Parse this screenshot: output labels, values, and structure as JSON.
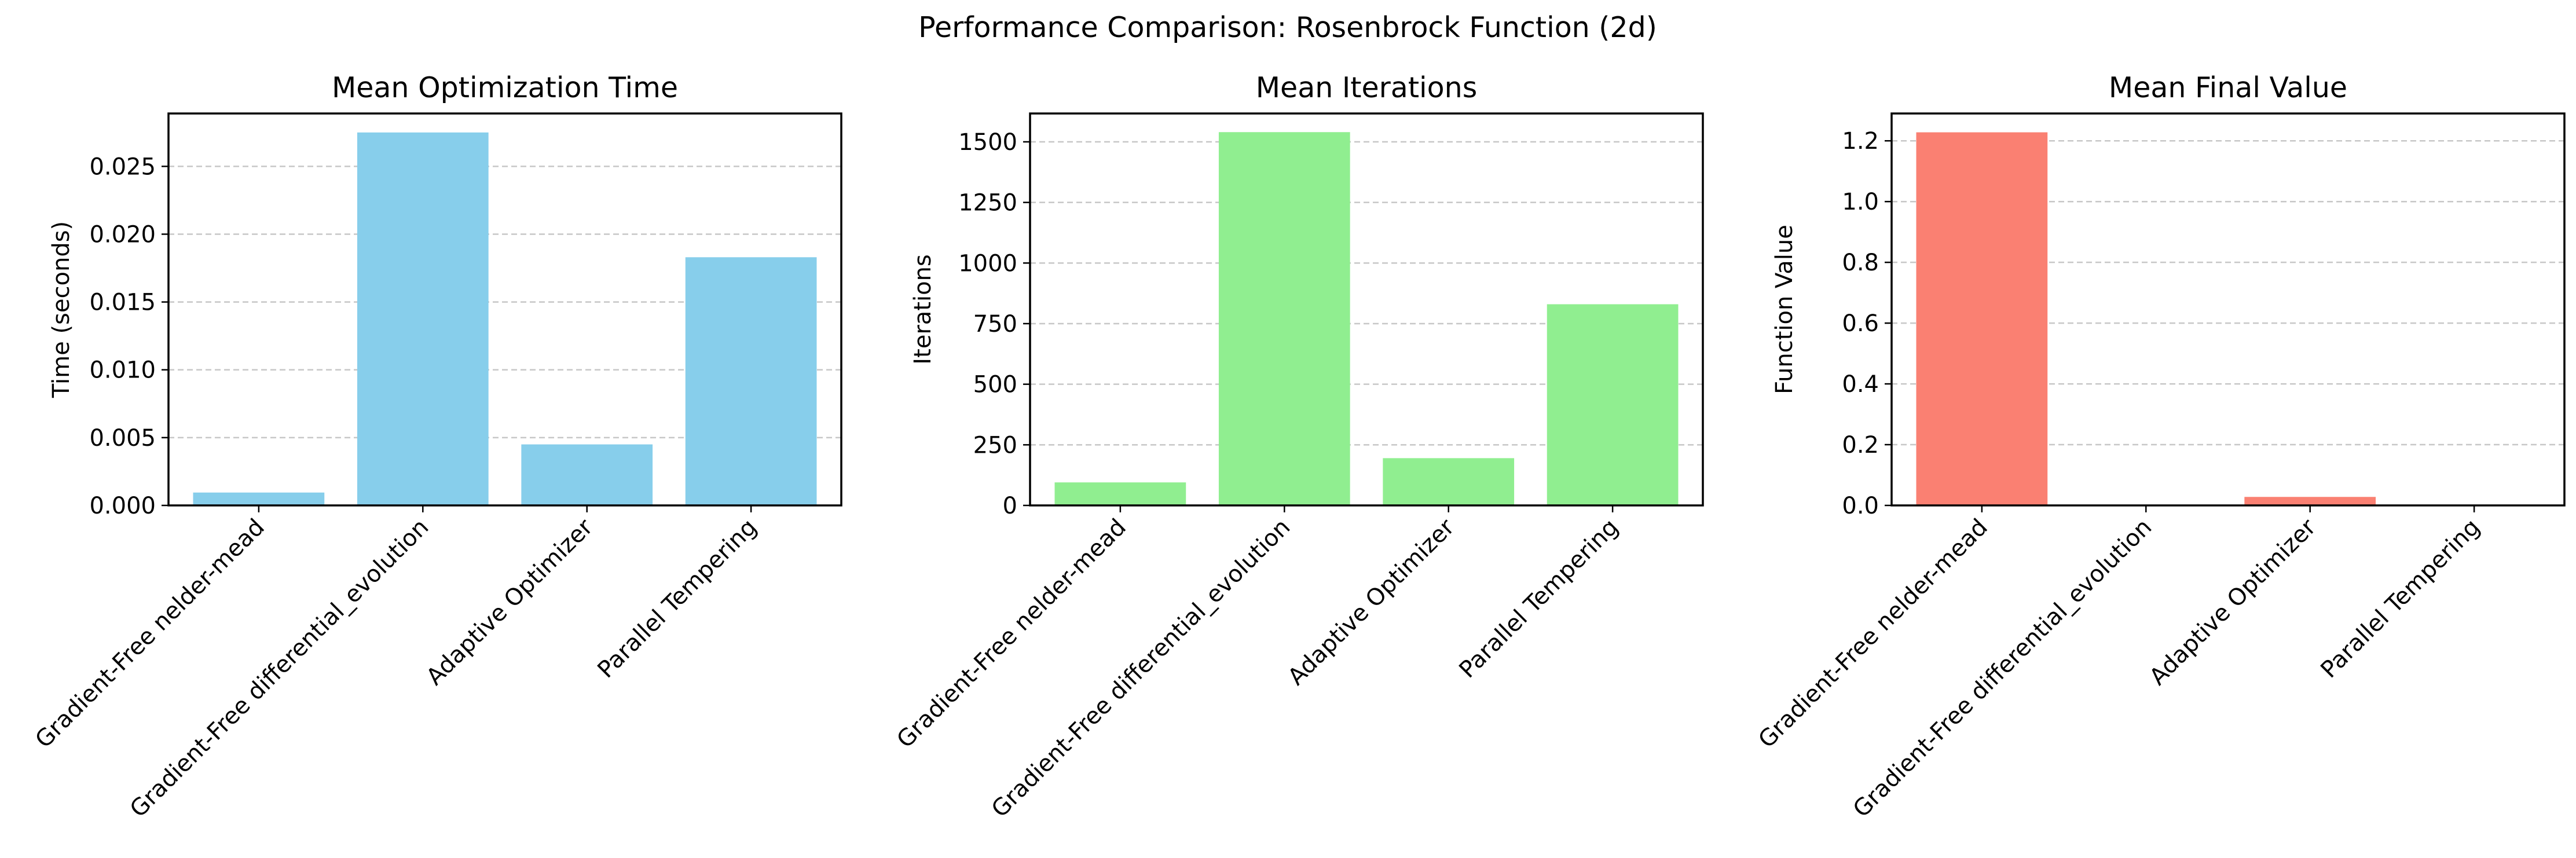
{
  "chart_data": {
    "title": "Performance Comparison: Rosenbrock Function (2d)",
    "panels": [
      {
        "type": "bar",
        "title": "Mean Optimization Time",
        "xlabel": "",
        "ylabel": "Time (seconds)",
        "categories": [
          "Gradient-Free nelder-mead",
          "Gradient-Free differential_evolution",
          "Adaptive Optimizer",
          "Parallel Tempering"
        ],
        "values": [
          0.00095,
          0.0275,
          0.0045,
          0.0183
        ],
        "ylim": [
          0,
          0.0289
        ],
        "yticks": [
          0.0,
          0.005,
          0.01,
          0.015,
          0.02,
          0.025
        ],
        "ytick_labels": [
          "0.000",
          "0.005",
          "0.010",
          "0.015",
          "0.020",
          "0.025"
        ],
        "color": "#87CEEB",
        "grid": "y"
      },
      {
        "type": "bar",
        "title": "Mean Iterations",
        "xlabel": "",
        "ylabel": "Iterations",
        "categories": [
          "Gradient-Free nelder-mead",
          "Gradient-Free differential_evolution",
          "Adaptive Optimizer",
          "Parallel Tempering"
        ],
        "values": [
          95,
          1540,
          195,
          830
        ],
        "ylim": [
          0,
          1617
        ],
        "yticks": [
          0,
          250,
          500,
          750,
          1000,
          1250,
          1500
        ],
        "ytick_labels": [
          "0",
          "250",
          "500",
          "750",
          "1000",
          "1250",
          "1500"
        ],
        "color": "#90EE90",
        "grid": "y"
      },
      {
        "type": "bar",
        "title": "Mean Final Value",
        "xlabel": "",
        "ylabel": "Function Value",
        "categories": [
          "Gradient-Free nelder-mead",
          "Gradient-Free differential_evolution",
          "Adaptive Optimizer",
          "Parallel Tempering"
        ],
        "values": [
          1.228,
          0.0,
          0.028,
          0.0
        ],
        "ylim": [
          0,
          1.29
        ],
        "yticks": [
          0.0,
          0.2,
          0.4,
          0.6,
          0.8,
          1.0,
          1.2
        ],
        "ytick_labels": [
          "0.0",
          "0.2",
          "0.4",
          "0.6",
          "0.8",
          "1.0",
          "1.2"
        ],
        "color": "#FA8072",
        "grid": "y"
      }
    ]
  }
}
